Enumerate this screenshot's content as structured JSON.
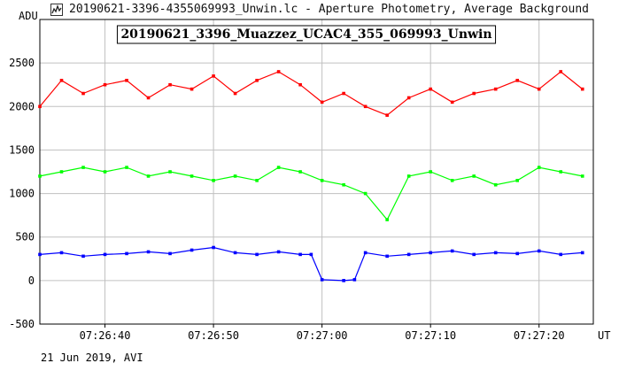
{
  "window": {
    "title": "20190621-3396-4355069993_Unwin.lc - Aperture Photometry, Average Background",
    "icon": "lightcurve-app-icon"
  },
  "footer": {
    "text": "21 Jun 2019, AVI"
  },
  "colors": {
    "target": "#ff0000",
    "comparison": "#00ff00",
    "background": "#0000ff",
    "grid": "#c0c0c0"
  },
  "chart_data": {
    "type": "line",
    "title": "20190621_3396_Muazzez_UCAC4_355_069993_Unwin",
    "ylabel": "ADU",
    "xlabel": "UT",
    "ylim": [
      -500,
      3000
    ],
    "xlim_seconds": [
      34,
      85
    ],
    "yticks": [
      -500,
      0,
      500,
      1000,
      1500,
      2000,
      2500
    ],
    "xticks": [
      {
        "s": 40,
        "label": "07:26:40"
      },
      {
        "s": 50,
        "label": "07:26:50"
      },
      {
        "s": 60,
        "label": "07:27:00"
      },
      {
        "s": 70,
        "label": "07:27:10"
      },
      {
        "s": 80,
        "label": "07:27:20"
      }
    ],
    "grid": true,
    "series": [
      {
        "key": "target",
        "color": "#ff0000",
        "x": [
          34,
          36,
          38,
          40,
          42,
          44,
          46,
          48,
          50,
          52,
          54,
          56,
          58,
          60,
          62,
          64,
          66,
          68,
          70,
          72,
          74,
          76,
          78,
          80,
          82,
          84
        ],
        "y": [
          2000,
          2300,
          2150,
          2250,
          2300,
          2100,
          2250,
          2200,
          2350,
          2150,
          2300,
          2400,
          2250,
          2050,
          2150,
          2000,
          1900,
          2100,
          2200,
          2050,
          2150,
          2200,
          2300,
          2200,
          2400,
          2200
        ]
      },
      {
        "key": "comparison",
        "color": "#00ff00",
        "x": [
          34,
          36,
          38,
          40,
          42,
          44,
          46,
          48,
          50,
          52,
          54,
          56,
          58,
          60,
          62,
          64,
          66,
          68,
          70,
          72,
          74,
          76,
          78,
          80,
          82,
          84
        ],
        "y": [
          1200,
          1250,
          1300,
          1250,
          1300,
          1200,
          1250,
          1200,
          1150,
          1200,
          1150,
          1300,
          1250,
          1150,
          1100,
          1000,
          700,
          1200,
          1250,
          1150,
          1200,
          1100,
          1150,
          1300,
          1250,
          1200
        ]
      },
      {
        "key": "background",
        "color": "#0000ff",
        "x": [
          34,
          36,
          38,
          40,
          42,
          44,
          46,
          48,
          50,
          52,
          54,
          56,
          58,
          59,
          60,
          62,
          63,
          64,
          66,
          68,
          70,
          72,
          74,
          76,
          78,
          80,
          82,
          84
        ],
        "y": [
          300,
          320,
          280,
          300,
          310,
          330,
          310,
          350,
          380,
          320,
          300,
          330,
          300,
          300,
          10,
          0,
          10,
          320,
          280,
          300,
          320,
          340,
          300,
          320,
          310,
          340,
          300,
          320
        ]
      }
    ]
  }
}
